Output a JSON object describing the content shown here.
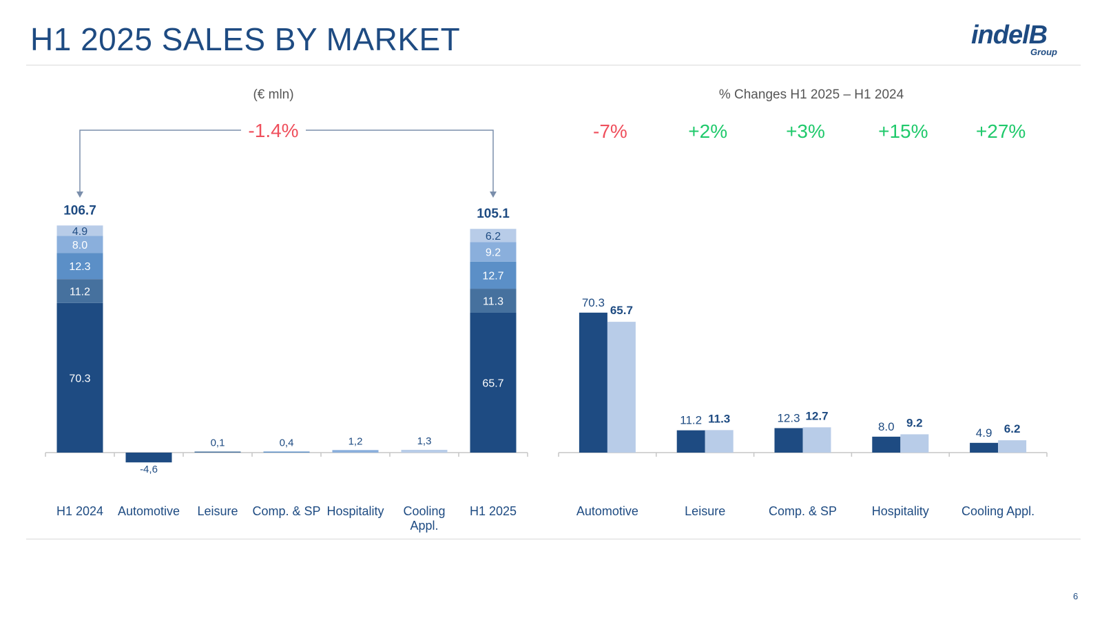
{
  "header": {
    "title": "H1 2025 SALES BY MARKET",
    "logo_main": "indelB",
    "logo_sub": "Group"
  },
  "page_number": "6",
  "colors": {
    "navy": "#1e4b82",
    "steel": "#46719e",
    "mid_blue": "#5b8fc7",
    "light_blue": "#8aafdc",
    "pale_blue": "#b8cce8",
    "negative": "#ef4f5c",
    "positive": "#1fc96b",
    "axis": "#c6c6c6"
  },
  "chart_data": [
    {
      "type": "bar",
      "subtype": "waterfall",
      "subtitle": "(€ mln)",
      "bracket_label": "-1.4%",
      "categories": [
        "H1 2024",
        "Automotive",
        "Leisure",
        "Comp. & SP",
        "Hospitality",
        "Cooling Appl.",
        "H1 2025"
      ],
      "totals": [
        {
          "category": "H1 2024",
          "total_label": "106.7",
          "segments": [
            {
              "market": "Automotive",
              "value": 70.3,
              "label": "70.3"
            },
            {
              "market": "Leisure",
              "value": 11.2,
              "label": "11.2"
            },
            {
              "market": "Comp. & SP",
              "value": 12.3,
              "label": "12.3"
            },
            {
              "market": "Hospitality",
              "value": 8.0,
              "label": "8.0"
            },
            {
              "market": "Cooling Appl.",
              "value": 4.9,
              "label": "4.9"
            }
          ]
        },
        {
          "category": "H1 2025",
          "total_label": "105.1",
          "segments": [
            {
              "market": "Automotive",
              "value": 65.7,
              "label": "65.7"
            },
            {
              "market": "Leisure",
              "value": 11.3,
              "label": "11.3"
            },
            {
              "market": "Comp. & SP",
              "value": 12.7,
              "label": "12.7"
            },
            {
              "market": "Hospitality",
              "value": 9.2,
              "label": "9.2"
            },
            {
              "market": "Cooling Appl.",
              "value": 6.2,
              "label": "6.2"
            }
          ]
        }
      ],
      "deltas": [
        {
          "category": "Automotive",
          "value": -4.6,
          "label": "-4,6"
        },
        {
          "category": "Leisure",
          "value": 0.1,
          "label": "0,1"
        },
        {
          "category": "Comp. & SP",
          "value": 0.4,
          "label": "0,4"
        },
        {
          "category": "Hospitality",
          "value": 1.2,
          "label": "1,2"
        },
        {
          "category": "Cooling Appl.",
          "value": 1.3,
          "label": "1,3"
        }
      ]
    },
    {
      "type": "bar",
      "subtype": "grouped",
      "subtitle": "% Changes H1 2025 – H1 2024",
      "categories": [
        "Automotive",
        "Leisure",
        "Comp. & SP",
        "Hospitality",
        "Cooling Appl."
      ],
      "series": [
        {
          "values": [
            70.3,
            11.2,
            12.3,
            8.0,
            4.9
          ],
          "labels": [
            "70.3",
            "11.2",
            "12.3",
            "8.0",
            "4.9"
          ]
        },
        {
          "values": [
            65.7,
            11.3,
            12.7,
            9.2,
            6.2
          ],
          "labels": [
            "65.7",
            "11.3",
            "12.7",
            "9.2",
            "6.2"
          ]
        }
      ],
      "pct_changes": [
        "-7%",
        "+2%",
        "+3%",
        "+15%",
        "+27%"
      ]
    }
  ]
}
